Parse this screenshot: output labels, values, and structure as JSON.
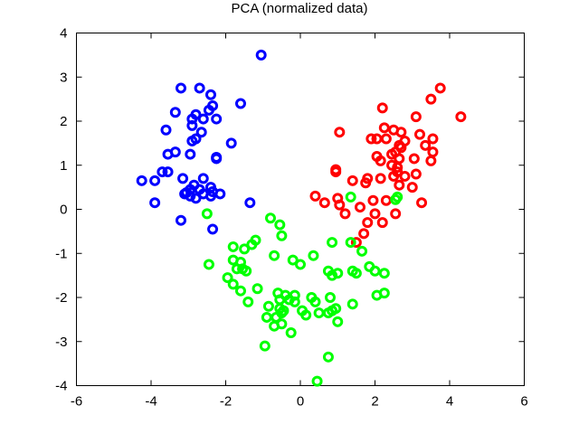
{
  "chart_data": {
    "type": "scatter",
    "title": "PCA (normalized data)",
    "xlabel": "",
    "ylabel": "",
    "xlim": [
      -6,
      6
    ],
    "ylim": [
      -4,
      4
    ],
    "xticks": [
      -6,
      -4,
      -2,
      0,
      2,
      4,
      6
    ],
    "yticks": [
      -4,
      -3,
      -2,
      -1,
      0,
      1,
      2,
      3,
      4
    ],
    "grid": false,
    "legend": "none",
    "marker": "open-circle",
    "series": [
      {
        "color": "#0000ff",
        "points": [
          [
            -1.05,
            3.5
          ],
          [
            -3.2,
            2.75
          ],
          [
            -2.7,
            2.75
          ],
          [
            -2.4,
            2.6
          ],
          [
            -3.35,
            2.2
          ],
          [
            -2.35,
            2.35
          ],
          [
            -1.6,
            2.4
          ],
          [
            -2.8,
            2.15
          ],
          [
            -2.9,
            2.05
          ],
          [
            -2.45,
            2.25
          ],
          [
            -2.6,
            2.05
          ],
          [
            -2.25,
            2.05
          ],
          [
            -2.9,
            1.9
          ],
          [
            -3.6,
            1.8
          ],
          [
            -2.65,
            1.75
          ],
          [
            -2.9,
            1.55
          ],
          [
            -2.8,
            1.6
          ],
          [
            -1.85,
            1.5
          ],
          [
            -3.35,
            1.3
          ],
          [
            -3.55,
            1.25
          ],
          [
            -2.95,
            1.25
          ],
          [
            -2.25,
            1.15
          ],
          [
            -3.55,
            0.85
          ],
          [
            -3.7,
            0.85
          ],
          [
            -3.15,
            0.7
          ],
          [
            -2.6,
            0.7
          ],
          [
            -4.25,
            0.65
          ],
          [
            -3.9,
            0.65
          ],
          [
            -2.85,
            0.55
          ],
          [
            -2.95,
            0.45
          ],
          [
            -2.7,
            0.45
          ],
          [
            -2.4,
            0.5
          ],
          [
            -2.35,
            0.4
          ],
          [
            -2.15,
            0.35
          ],
          [
            -3.1,
            0.35
          ],
          [
            -2.95,
            0.3
          ],
          [
            -2.6,
            0.35
          ],
          [
            -2.4,
            0.3
          ],
          [
            -2.8,
            0.25
          ],
          [
            -1.35,
            0.15
          ],
          [
            -3.9,
            0.15
          ],
          [
            -3.2,
            -0.25
          ],
          [
            -2.35,
            -0.45
          ],
          [
            -2.25,
            1.18
          ],
          [
            -3.05,
            0.38
          ]
        ]
      },
      {
        "color": "#ff0000",
        "points": [
          [
            3.75,
            2.75
          ],
          [
            3.5,
            2.5
          ],
          [
            2.2,
            2.3
          ],
          [
            4.3,
            2.1
          ],
          [
            3.1,
            2.1
          ],
          [
            2.25,
            1.85
          ],
          [
            2.5,
            1.8
          ],
          [
            2.7,
            1.75
          ],
          [
            3.2,
            1.7
          ],
          [
            2.8,
            1.55
          ],
          [
            2.05,
            1.6
          ],
          [
            1.9,
            1.6
          ],
          [
            2.3,
            1.6
          ],
          [
            3.55,
            1.6
          ],
          [
            2.65,
            1.45
          ],
          [
            2.7,
            1.4
          ],
          [
            3.35,
            1.45
          ],
          [
            2.55,
            1.3
          ],
          [
            2.45,
            1.25
          ],
          [
            3.55,
            1.3
          ],
          [
            2.05,
            1.2
          ],
          [
            2.65,
            1.15
          ],
          [
            3.05,
            1.15
          ],
          [
            2.15,
            1.1
          ],
          [
            3.5,
            1.1
          ],
          [
            2.45,
            1.0
          ],
          [
            2.6,
            0.95
          ],
          [
            1.05,
            1.75
          ],
          [
            0.95,
            0.9
          ],
          [
            0.95,
            0.85
          ],
          [
            1.4,
            0.65
          ],
          [
            1.75,
            0.6
          ],
          [
            1.8,
            0.7
          ],
          [
            2.15,
            0.7
          ],
          [
            2.5,
            0.75
          ],
          [
            2.8,
            0.75
          ],
          [
            3.1,
            0.8
          ],
          [
            3.0,
            0.5
          ],
          [
            2.6,
            0.85
          ],
          [
            2.65,
            0.55
          ],
          [
            0.4,
            0.3
          ],
          [
            1.0,
            0.25
          ],
          [
            0.65,
            0.15
          ],
          [
            1.05,
            0.1
          ],
          [
            1.95,
            0.2
          ],
          [
            2.3,
            0.2
          ],
          [
            3.25,
            0.15
          ],
          [
            1.6,
            0.05
          ],
          [
            2.55,
            -0.1
          ],
          [
            1.2,
            -0.1
          ],
          [
            2.0,
            -0.1
          ],
          [
            1.8,
            -0.3
          ],
          [
            2.2,
            -0.3
          ],
          [
            1.7,
            -0.55
          ],
          [
            1.5,
            -0.75
          ]
        ]
      },
      {
        "color": "#00ff00",
        "points": [
          [
            -2.5,
            -0.1
          ],
          [
            -0.8,
            -0.2
          ],
          [
            -0.55,
            -0.35
          ],
          [
            -0.5,
            -0.6
          ],
          [
            -1.2,
            -0.7
          ],
          [
            -1.5,
            -0.9
          ],
          [
            -1.8,
            -0.85
          ],
          [
            -1.3,
            -0.8
          ],
          [
            1.35,
            -0.75
          ],
          [
            1.65,
            -0.95
          ],
          [
            0.85,
            -0.75
          ],
          [
            0.35,
            -1.05
          ],
          [
            -0.7,
            -1.05
          ],
          [
            -1.6,
            -1.2
          ],
          [
            -1.8,
            -1.15
          ],
          [
            -1.7,
            -1.35
          ],
          [
            -1.45,
            -1.4
          ],
          [
            -1.55,
            -1.35
          ],
          [
            -0.2,
            -1.15
          ],
          [
            0.0,
            -1.25
          ],
          [
            -2.45,
            -1.25
          ],
          [
            1.85,
            -1.3
          ],
          [
            0.75,
            -1.4
          ],
          [
            1.0,
            -1.45
          ],
          [
            0.85,
            -1.5
          ],
          [
            1.5,
            -1.45
          ],
          [
            2.0,
            -1.4
          ],
          [
            2.25,
            -1.45
          ],
          [
            1.4,
            -1.4
          ],
          [
            -1.95,
            -1.55
          ],
          [
            -1.8,
            -1.7
          ],
          [
            -1.6,
            -1.85
          ],
          [
            -1.15,
            -1.8
          ],
          [
            -0.6,
            -1.9
          ],
          [
            -0.4,
            -1.95
          ],
          [
            -0.15,
            -1.95
          ],
          [
            0.3,
            -2.0
          ],
          [
            2.05,
            -1.95
          ],
          [
            2.25,
            -1.9
          ],
          [
            0.8,
            -2.0
          ],
          [
            -0.55,
            -2.05
          ],
          [
            -0.3,
            -2.05
          ],
          [
            -0.15,
            -2.1
          ],
          [
            0.4,
            -2.1
          ],
          [
            1.4,
            -2.15
          ],
          [
            -1.4,
            -2.1
          ],
          [
            -0.85,
            -2.2
          ],
          [
            -0.55,
            -2.25
          ],
          [
            -0.5,
            -2.35
          ],
          [
            -0.45,
            -2.3
          ],
          [
            0.05,
            -2.3
          ],
          [
            0.85,
            -2.3
          ],
          [
            0.95,
            -2.25
          ],
          [
            -0.9,
            -2.45
          ],
          [
            -0.65,
            -2.45
          ],
          [
            0.15,
            -2.4
          ],
          [
            0.75,
            -2.35
          ],
          [
            0.5,
            -2.35
          ],
          [
            1.0,
            -2.55
          ],
          [
            -0.7,
            -2.65
          ],
          [
            -0.5,
            -2.6
          ],
          [
            -0.25,
            -2.8
          ],
          [
            -0.95,
            -3.1
          ],
          [
            0.75,
            -3.35
          ],
          [
            0.45,
            -3.9
          ],
          [
            2.55,
            0.22
          ],
          [
            2.6,
            0.28
          ],
          [
            1.35,
            0.28
          ]
        ]
      }
    ]
  }
}
